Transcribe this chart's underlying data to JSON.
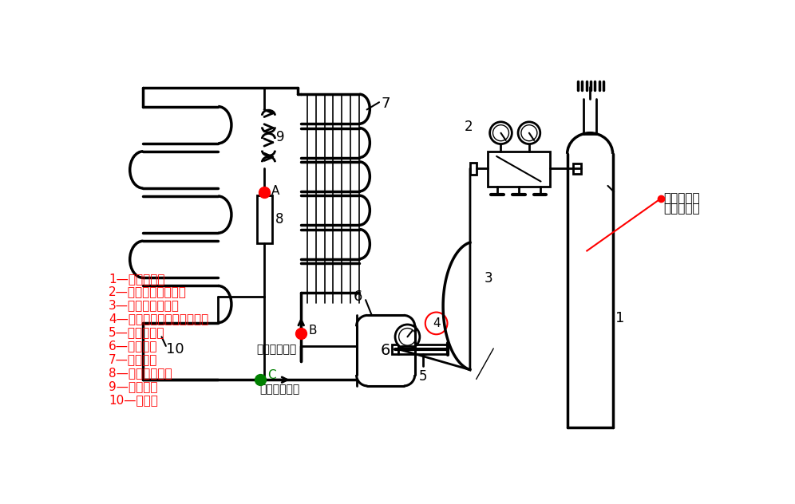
{
  "bg": "#ffffff",
  "lc": "#000000",
  "rc": "#ff0000",
  "gc": "#008000",
  "labels": [
    "1—氮气钒瓶；",
    "2—氮气减压调节阀；",
    "3—耐压连接胶管；",
    "4—带压力表的三通修理阀；",
    "5—快速接头；",
    "6—压缩机；",
    "7—冷凝器；",
    "8—干燥过滤器；",
    "9—毛细管；",
    "10—蒸发器"
  ],
  "ann1": "带压力表的",
  "ann2": "三通修理阀",
  "t_out": "出气管（细）",
  "t_in": "回气管（粗）"
}
